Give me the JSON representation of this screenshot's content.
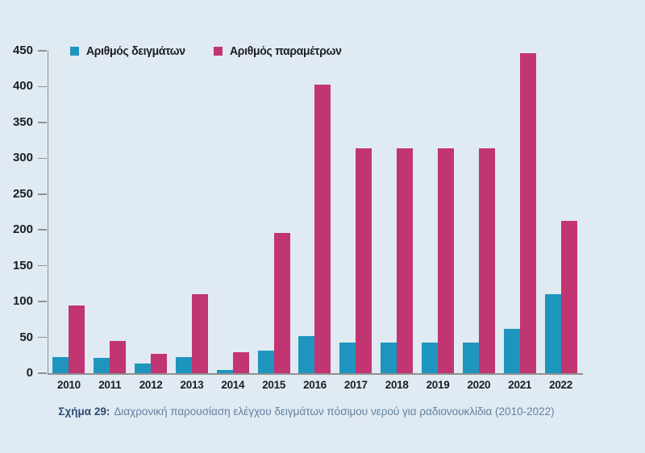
{
  "chart_data": {
    "type": "bar",
    "categories": [
      "2010",
      "2011",
      "2012",
      "2013",
      "2014",
      "2015",
      "2016",
      "2017",
      "2018",
      "2019",
      "2020",
      "2021",
      "2022"
    ],
    "series": [
      {
        "key": "samples",
        "name": "Αριθμός δειγμάτων",
        "color": "#1E95BE",
        "values": [
          23,
          21,
          13,
          23,
          4,
          31,
          52,
          43,
          43,
          43,
          43,
          62,
          110
        ]
      },
      {
        "key": "parameters",
        "name": "Αριθμός παραμέτρων",
        "color": "#C13572",
        "values": [
          95,
          45,
          27,
          110,
          29,
          196,
          403,
          314,
          314,
          314,
          314,
          447,
          213
        ]
      }
    ],
    "title": "",
    "xlabel": "",
    "ylabel": "",
    "ylim": [
      0,
      450
    ],
    "yticks": [
      0,
      50,
      100,
      150,
      200,
      250,
      300,
      350,
      400,
      450
    ],
    "grid": false,
    "legend_position": "top-left"
  },
  "legend": {
    "items": [
      {
        "label": "Αριθμός δειγμάτων"
      },
      {
        "label": "Αριθμός παραμέτρων"
      }
    ]
  },
  "caption": {
    "prefix": "Σχήμα 29:",
    "text": "Διαχρονική παρουσίαση ελέγχου δειγμάτων πόσιμου νερού για ραδιονουκλίδια (2010-2022)"
  },
  "colors": {
    "background": "#E0EAF2",
    "axis": "#8F8F8F",
    "tick_text": "#1B1C26",
    "caption_bold": "#2C4A70",
    "caption_text": "#60809F"
  }
}
